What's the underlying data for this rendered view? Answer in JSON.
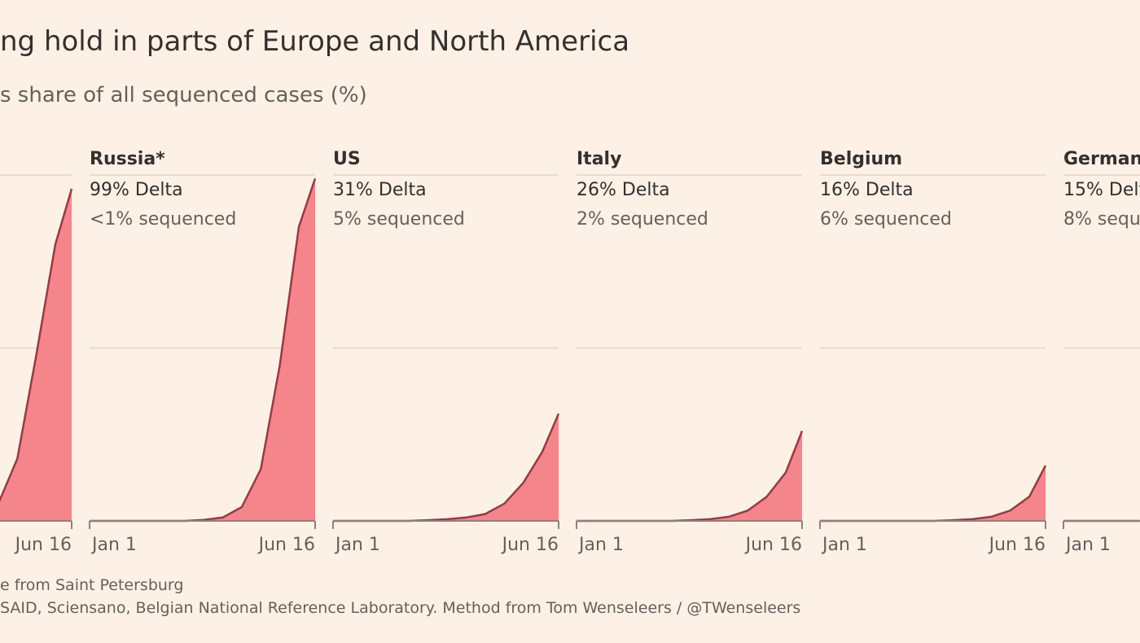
{
  "title": "ng hold in parts of Europe and North America",
  "subtitle": "s share of all sequenced cases (%)",
  "notes": [
    "e from Saint Petersburg",
    "SAID, Sciensano, Belgian National Reference Laboratory. Method from Tom Wenseleers / @TWenseleers"
  ],
  "chart_data": [
    {
      "type": "area",
      "color": "#f4858b",
      "line_color": "#a5343f",
      "x": [
        0,
        14,
        28,
        42,
        56,
        70,
        84,
        98,
        112,
        126,
        140,
        154,
        166
      ],
      "values": [
        0,
        0,
        0,
        0,
        0,
        0,
        0.3,
        1,
        5,
        18,
        48,
        80,
        96
      ],
      "xlim": [
        0,
        166
      ],
      "ylim": [
        0,
        100
      ],
      "gridlines": [
        50,
        100
      ],
      "xticks": [
        {
          "value": 166,
          "label": "Jun 16"
        }
      ]
    },
    {
      "type": "area",
      "name": "Russia*",
      "headline": "99% Delta",
      "subline": "<1% sequenced",
      "color": "#f4858b",
      "line_color": "#a5343f",
      "x": [
        0,
        14,
        28,
        42,
        56,
        70,
        84,
        98,
        112,
        126,
        140,
        154,
        166
      ],
      "values": [
        0,
        0,
        0,
        0,
        0,
        0,
        0.3,
        1,
        4,
        15,
        45,
        85,
        99
      ],
      "xlim": [
        0,
        166
      ],
      "ylim": [
        0,
        100
      ],
      "gridlines": [
        50,
        100
      ],
      "xticks": [
        {
          "value": 0,
          "label": "Jan 1"
        },
        {
          "value": 166,
          "label": "Jun 16"
        }
      ]
    },
    {
      "type": "area",
      "name": "US",
      "headline": "31% Delta",
      "subline": "5% sequenced",
      "color": "#f4858b",
      "line_color": "#a5343f",
      "x": [
        0,
        14,
        28,
        42,
        56,
        70,
        84,
        98,
        112,
        126,
        140,
        154,
        166
      ],
      "values": [
        0,
        0,
        0,
        0,
        0,
        0.2,
        0.5,
        1,
        2,
        5,
        11,
        20,
        31
      ],
      "xlim": [
        0,
        166
      ],
      "ylim": [
        0,
        100
      ],
      "gridlines": [
        50,
        100
      ],
      "xticks": [
        {
          "value": 0,
          "label": "Jan 1"
        },
        {
          "value": 166,
          "label": "Jun 16"
        }
      ]
    },
    {
      "type": "area",
      "name": "Italy",
      "headline": "26% Delta",
      "subline": "2% sequenced",
      "color": "#f4858b",
      "line_color": "#a5343f",
      "x": [
        0,
        14,
        28,
        42,
        56,
        70,
        84,
        98,
        112,
        126,
        140,
        154,
        166
      ],
      "values": [
        0,
        0,
        0,
        0,
        0,
        0,
        0.2,
        0.5,
        1.2,
        3,
        7,
        14,
        26
      ],
      "xlim": [
        0,
        166
      ],
      "ylim": [
        0,
        100
      ],
      "gridlines": [
        50,
        100
      ],
      "xticks": [
        {
          "value": 0,
          "label": "Jan 1"
        },
        {
          "value": 166,
          "label": "Jun 16"
        }
      ]
    },
    {
      "type": "area",
      "name": "Belgium",
      "headline": "16% Delta",
      "subline": "6% sequenced",
      "color": "#f4858b",
      "line_color": "#a5343f",
      "x": [
        0,
        14,
        28,
        42,
        56,
        70,
        84,
        98,
        112,
        126,
        140,
        154,
        166
      ],
      "values": [
        0,
        0,
        0,
        0,
        0,
        0,
        0,
        0.2,
        0.5,
        1.2,
        3,
        7,
        16
      ],
      "xlim": [
        0,
        166
      ],
      "ylim": [
        0,
        100
      ],
      "gridlines": [
        50,
        100
      ],
      "xticks": [
        {
          "value": 0,
          "label": "Jan 1"
        },
        {
          "value": 166,
          "label": "Jun 16"
        }
      ]
    },
    {
      "type": "area",
      "name": "German",
      "headline": "15% Delt",
      "subline": "8% seque",
      "color": "#f4858b",
      "line_color": "#a5343f",
      "x": [
        0,
        14,
        28,
        42,
        56
      ],
      "values": [
        0,
        0,
        0,
        0,
        0
      ],
      "xlim": [
        0,
        166
      ],
      "ylim": [
        0,
        100
      ],
      "gridlines": [
        50,
        100
      ],
      "xticks": [
        {
          "value": 0,
          "label": "Jan 1"
        }
      ]
    }
  ]
}
